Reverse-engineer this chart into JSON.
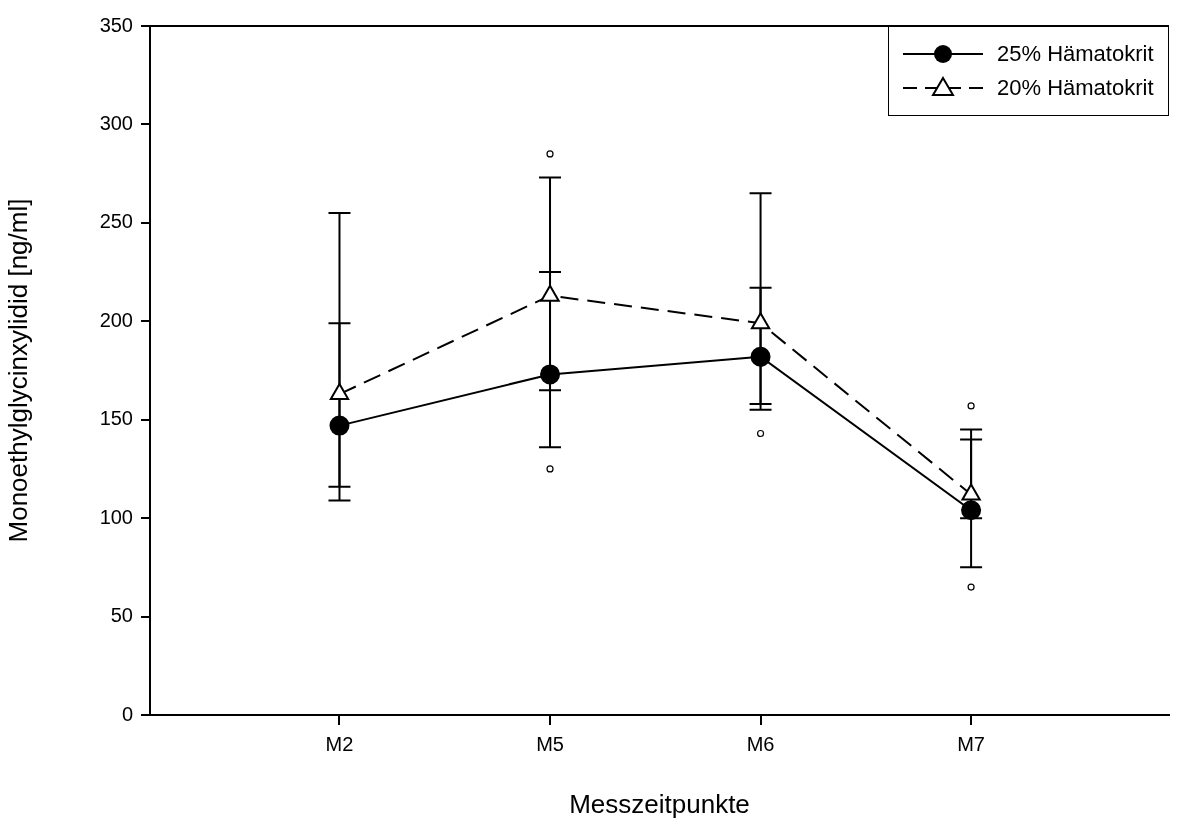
{
  "chart_data": {
    "type": "line",
    "xlabel": "Messzeitpunkte",
    "ylabel": "Monoethylglycinxylidid [ng/ml]",
    "categories": [
      "M2",
      "M5",
      "M6",
      "M7"
    ],
    "ylim": [
      0,
      350
    ],
    "yticks": [
      0,
      50,
      100,
      150,
      200,
      250,
      300,
      350
    ],
    "grid": false,
    "legend": "top right",
    "series": [
      {
        "name": "25% Hämatokrit",
        "color": "#000000",
        "marker": "circle",
        "line_style": "solid",
        "values": [
          147,
          173,
          182,
          104
        ],
        "errors": [
          [
            109,
            199
          ],
          [
            136,
            225
          ],
          [
            155,
            217
          ],
          [
            75,
            140
          ]
        ]
      },
      {
        "name": "20% Hämatokrit",
        "color": "#000000",
        "marker": "triangle",
        "line_style": "dashed",
        "values": [
          163,
          213,
          199,
          112
        ],
        "errors": [
          [
            116,
            255
          ],
          [
            165,
            273
          ],
          [
            158,
            265
          ],
          [
            100,
            145
          ]
        ]
      },
      {
        "type": "scatter",
        "color": "#000000",
        "marker": "circle",
        "x": [
          "M5",
          "M6",
          "M7"
        ],
        "values": [
          125,
          143,
          65
        ]
      },
      {
        "type": "scatter",
        "color": "#000000",
        "marker": "circle",
        "x": [
          "M5",
          "M7"
        ],
        "values": [
          285,
          157
        ]
      }
    ]
  }
}
